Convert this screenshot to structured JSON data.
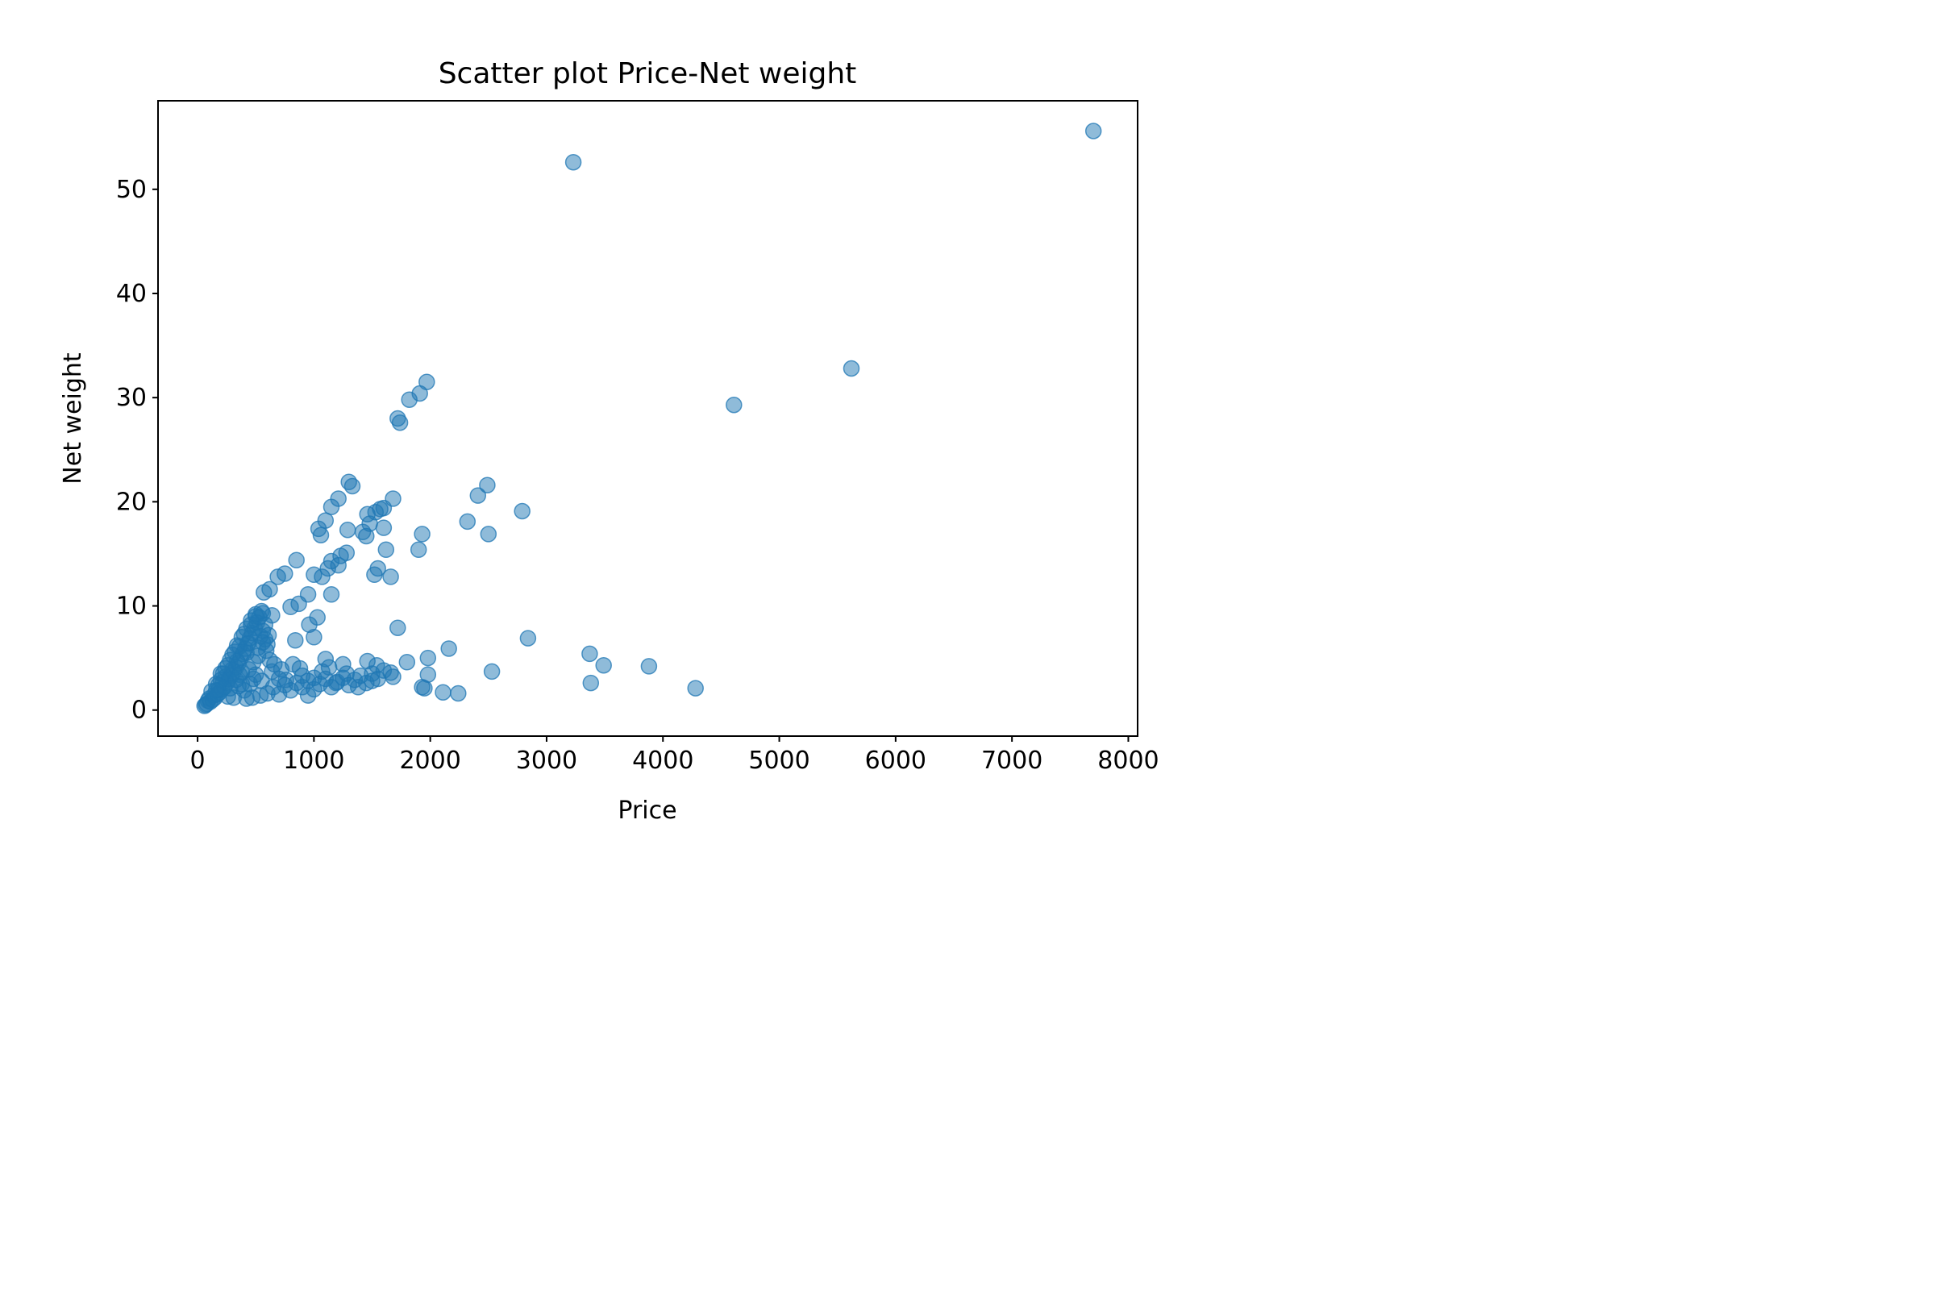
{
  "chart_data": {
    "type": "scatter",
    "title": "Scatter plot Price-Net weight",
    "xlabel": "Price",
    "ylabel": "Net weight",
    "xlim": [
      -340,
      8080
    ],
    "ylim": [
      -2.5,
      58.5
    ],
    "xticks": [
      0,
      1000,
      2000,
      3000,
      4000,
      5000,
      6000,
      7000,
      8000
    ],
    "yticks": [
      0,
      10,
      20,
      30,
      40,
      50
    ],
    "grid": false,
    "legend": "none",
    "marker_color": "#1f77b4",
    "marker_alpha": 0.5,
    "series": [
      {
        "points": [
          [
            7700,
            55.6
          ],
          [
            3230,
            52.6
          ],
          [
            5620,
            32.8
          ],
          [
            4610,
            29.3
          ],
          [
            1970,
            31.5
          ],
          [
            1910,
            30.4
          ],
          [
            1820,
            29.8
          ],
          [
            1720,
            28.0
          ],
          [
            1740,
            27.6
          ],
          [
            1300,
            21.9
          ],
          [
            1330,
            21.5
          ],
          [
            1680,
            20.3
          ],
          [
            2490,
            21.6
          ],
          [
            2410,
            20.6
          ],
          [
            2790,
            19.1
          ],
          [
            2320,
            18.1
          ],
          [
            1930,
            16.9
          ],
          [
            2500,
            16.9
          ],
          [
            1900,
            15.4
          ],
          [
            1210,
            20.3
          ],
          [
            1150,
            19.5
          ],
          [
            1100,
            18.2
          ],
          [
            1040,
            17.4
          ],
          [
            1060,
            16.8
          ],
          [
            1290,
            17.3
          ],
          [
            1420,
            17.1
          ],
          [
            1480,
            17.9
          ],
          [
            1530,
            19.0
          ],
          [
            1600,
            19.4
          ],
          [
            1570,
            19.3
          ],
          [
            1460,
            18.8
          ],
          [
            1600,
            17.5
          ],
          [
            1450,
            16.7
          ],
          [
            1620,
            15.4
          ],
          [
            1550,
            13.6
          ],
          [
            1520,
            13.0
          ],
          [
            1660,
            12.8
          ],
          [
            1280,
            15.1
          ],
          [
            1230,
            14.8
          ],
          [
            1150,
            14.3
          ],
          [
            1120,
            13.6
          ],
          [
            1070,
            12.8
          ],
          [
            1210,
            13.9
          ],
          [
            850,
            14.4
          ],
          [
            750,
            13.1
          ],
          [
            690,
            12.8
          ],
          [
            1000,
            13.0
          ],
          [
            620,
            11.6
          ],
          [
            570,
            11.3
          ],
          [
            1150,
            11.1
          ],
          [
            950,
            11.1
          ],
          [
            870,
            10.2
          ],
          [
            800,
            9.9
          ],
          [
            1720,
            7.9
          ],
          [
            1030,
            8.9
          ],
          [
            960,
            8.2
          ],
          [
            1000,
            7.0
          ],
          [
            840,
            6.7
          ],
          [
            2160,
            5.9
          ],
          [
            1980,
            5.0
          ],
          [
            1800,
            4.6
          ],
          [
            2840,
            6.9
          ],
          [
            3370,
            5.4
          ],
          [
            3490,
            4.3
          ],
          [
            3880,
            4.2
          ],
          [
            2530,
            3.7
          ],
          [
            3380,
            2.6
          ],
          [
            4280,
            2.1
          ],
          [
            1980,
            3.4
          ],
          [
            1930,
            2.2
          ],
          [
            1950,
            2.1
          ],
          [
            2110,
            1.7
          ],
          [
            2240,
            1.6
          ],
          [
            1540,
            4.3
          ],
          [
            1460,
            4.7
          ],
          [
            1660,
            3.6
          ],
          [
            1500,
            2.8
          ],
          [
            1380,
            2.2
          ],
          [
            1280,
            3.5
          ],
          [
            1190,
            2.6
          ],
          [
            1100,
            4.9
          ],
          [
            1000,
            3.1
          ],
          [
            950,
            1.4
          ],
          [
            900,
            2.2
          ],
          [
            820,
            4.4
          ],
          [
            760,
            2.9
          ],
          [
            700,
            1.5
          ],
          [
            640,
            3.7
          ],
          [
            600,
            6.3
          ],
          [
            580,
            8.2
          ],
          [
            560,
            9.3
          ],
          [
            540,
            7.1
          ],
          [
            520,
            5.2
          ],
          [
            500,
            9.0
          ],
          [
            480,
            3.0
          ],
          [
            460,
            8.2
          ],
          [
            440,
            6.4
          ],
          [
            420,
            5.5
          ],
          [
            400,
            7.3
          ],
          [
            380,
            2.5
          ],
          [
            360,
            6.1
          ],
          [
            340,
            4.7
          ],
          [
            320,
            5.6
          ],
          [
            300,
            3.9
          ],
          [
            280,
            4.8
          ],
          [
            260,
            1.3
          ],
          [
            240,
            3.2
          ],
          [
            220,
            2.7
          ],
          [
            200,
            3.5
          ],
          [
            180,
            1.9
          ],
          [
            160,
            2.5
          ],
          [
            140,
            1.4
          ],
          [
            120,
            1.8
          ],
          [
            100,
            1.1
          ],
          [
            90,
            0.9
          ],
          [
            80,
            0.6
          ],
          [
            70,
            0.5
          ],
          [
            60,
            0.4
          ],
          [
            110,
            0.8
          ],
          [
            130,
            1.0
          ],
          [
            150,
            1.2
          ],
          [
            170,
            1.5
          ],
          [
            190,
            1.7
          ],
          [
            210,
            2.0
          ],
          [
            230,
            2.2
          ],
          [
            250,
            2.6
          ],
          [
            270,
            3.0
          ],
          [
            290,
            3.3
          ],
          [
            310,
            3.7
          ],
          [
            330,
            4.1
          ],
          [
            350,
            4.5
          ],
          [
            370,
            5.0
          ],
          [
            390,
            5.4
          ],
          [
            410,
            5.9
          ],
          [
            430,
            6.4
          ],
          [
            450,
            6.9
          ],
          [
            470,
            7.4
          ],
          [
            490,
            7.9
          ],
          [
            510,
            8.4
          ],
          [
            530,
            8.9
          ],
          [
            550,
            9.5
          ],
          [
            350,
            2.3
          ],
          [
            400,
            1.9
          ],
          [
            450,
            2.5
          ],
          [
            500,
            3.4
          ],
          [
            550,
            2.8
          ],
          [
            600,
            1.6
          ],
          [
            650,
            2.2
          ],
          [
            700,
            3.0
          ],
          [
            750,
            2.4
          ],
          [
            800,
            1.9
          ],
          [
            850,
            2.6
          ],
          [
            900,
            3.3
          ],
          [
            950,
            2.8
          ],
          [
            1000,
            2.0
          ],
          [
            1050,
            2.5
          ],
          [
            1100,
            3.0
          ],
          [
            1150,
            2.2
          ],
          [
            1200,
            2.7
          ],
          [
            1250,
            3.1
          ],
          [
            1300,
            2.4
          ],
          [
            1350,
            2.9
          ],
          [
            1400,
            3.3
          ],
          [
            1450,
            2.6
          ],
          [
            1500,
            3.5
          ],
          [
            1550,
            3.0
          ],
          [
            1600,
            3.8
          ],
          [
            1680,
            3.2
          ],
          [
            1250,
            4.4
          ],
          [
            1130,
            4.1
          ],
          [
            1070,
            3.7
          ],
          [
            880,
            4.0
          ],
          [
            720,
            3.9
          ],
          [
            660,
            4.4
          ],
          [
            310,
            1.2
          ],
          [
            280,
            2.1
          ],
          [
            330,
            2.9
          ],
          [
            360,
            3.4
          ],
          [
            440,
            3.9
          ],
          [
            480,
            4.6
          ],
          [
            520,
            6.0
          ],
          [
            580,
            6.8
          ],
          [
            620,
            4.8
          ],
          [
            540,
            1.4
          ],
          [
            470,
            1.2
          ],
          [
            420,
            1.1
          ],
          [
            380,
            3.6
          ],
          [
            260,
            4.3
          ],
          [
            240,
            4.0
          ],
          [
            220,
            3.5
          ],
          [
            200,
            2.9
          ],
          [
            180,
            2.4
          ],
          [
            160,
            1.9
          ],
          [
            300,
            5.3
          ],
          [
            340,
            6.2
          ],
          [
            380,
            7.0
          ],
          [
            420,
            7.8
          ],
          [
            460,
            8.6
          ],
          [
            500,
            9.2
          ],
          [
            560,
            7.6
          ],
          [
            590,
            5.7
          ],
          [
            610,
            7.2
          ],
          [
            640,
            9.1
          ],
          [
            560,
            6.5
          ]
        ]
      }
    ]
  }
}
